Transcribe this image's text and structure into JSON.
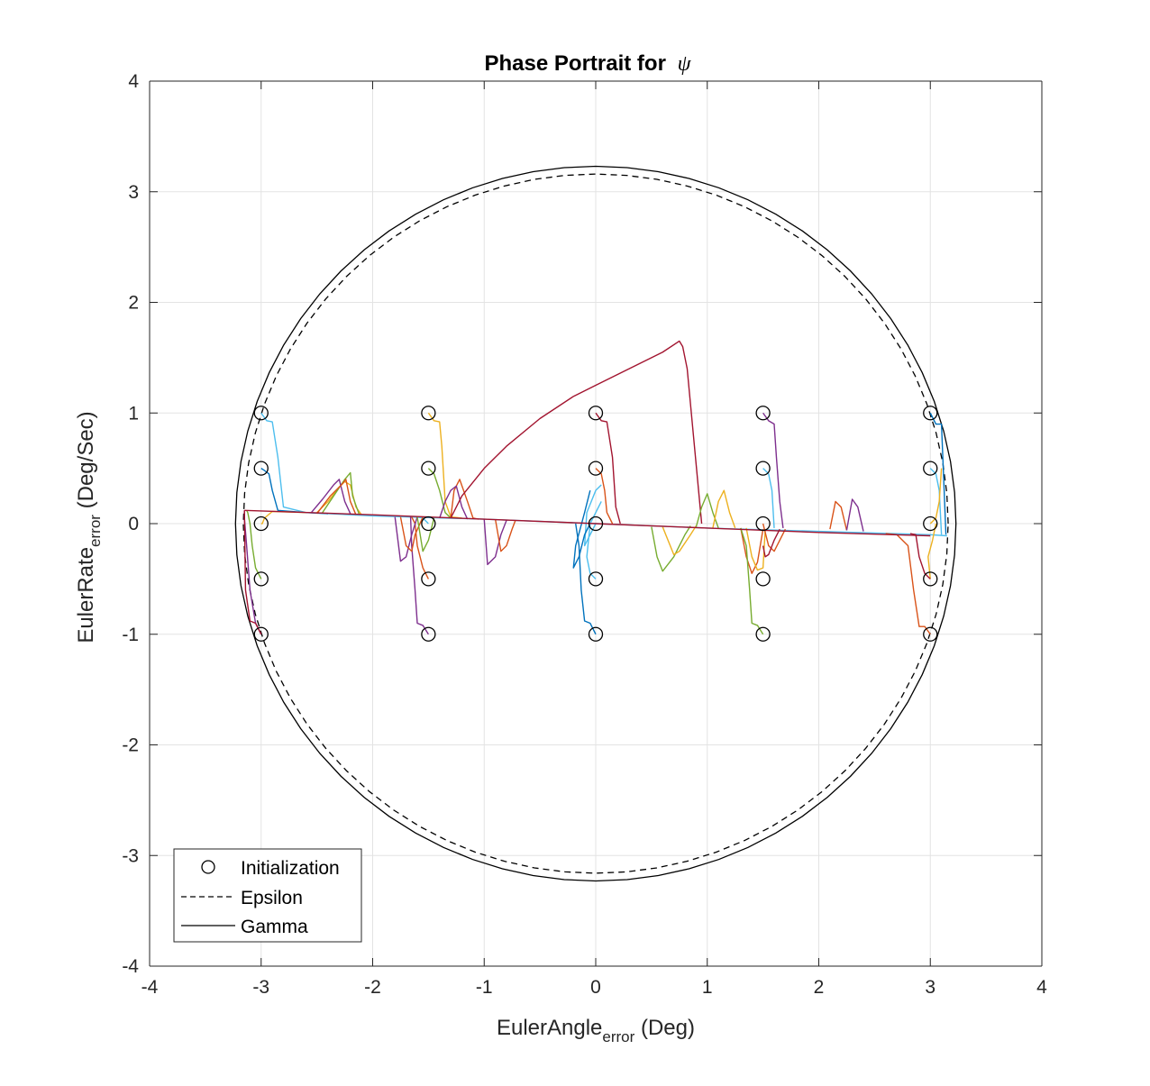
{
  "chart_data": {
    "type": "line",
    "title": "Phase Portrait for",
    "title_symbol": "ψ",
    "xlabel": {
      "main": "EulerAngle",
      "sub": "error",
      "unit": " (Deg)"
    },
    "ylabel": {
      "main": "EulerRate",
      "sub": "error",
      "unit": " (Deg/Sec)"
    },
    "xlim": [
      -4,
      4
    ],
    "ylim": [
      -4,
      4
    ],
    "xticks": [
      -4,
      -3,
      -2,
      -1,
      0,
      1,
      2,
      3,
      4
    ],
    "yticks": [
      -4,
      -3,
      -2,
      -1,
      0,
      1,
      2,
      3,
      4
    ],
    "xtick_labels": [
      "-4",
      "-3",
      "-2",
      "-1",
      "0",
      "1",
      "2",
      "3",
      "4"
    ],
    "ytick_labels": [
      "-4",
      "-3",
      "-2",
      "-1",
      "0",
      "1",
      "2",
      "3",
      "4"
    ],
    "grid": true,
    "legend": {
      "position": "bottom-left",
      "entries": [
        {
          "label": "Initialization",
          "style": "circle-marker"
        },
        {
          "label": "Epsilon",
          "style": "dashed"
        },
        {
          "label": "Gamma",
          "style": "solid"
        }
      ]
    },
    "boundaries": {
      "epsilon": {
        "label": "Epsilon",
        "radius": 3.16,
        "style": "dashed",
        "color": "#000000"
      },
      "gamma": {
        "label": "Gamma",
        "radius": 3.23,
        "style": "solid",
        "color": "#000000"
      }
    },
    "initialization": {
      "label": "Initialization",
      "x": [
        -3,
        -1.5,
        0,
        1.5,
        3
      ],
      "y": [
        -1,
        -0.5,
        0,
        0.5,
        1
      ]
    },
    "series_colors": [
      "#0072BD",
      "#D95319",
      "#EDB120",
      "#7E2F8E",
      "#77AC30",
      "#4DBEEE",
      "#A2142F"
    ],
    "series": [
      {
        "color": "#4DBEEE",
        "x": [
          -3,
          -2.95,
          -2.9,
          -2.85,
          -2.8,
          -2.6,
          -2.4,
          -2.0,
          -1.0,
          0.0,
          1.0,
          2.0,
          3.0,
          3.15
        ],
        "y": [
          1,
          0.93,
          0.92,
          0.6,
          0.15,
          0.1,
          0.09,
          0.07,
          0.04,
          0.0,
          -0.04,
          -0.07,
          -0.1,
          -0.11
        ]
      },
      {
        "color": "#0072BD",
        "x": [
          -3,
          -2.97,
          -2.93,
          -2.9,
          -2.85,
          -2.6,
          -2.4
        ],
        "y": [
          0.5,
          0.48,
          0.45,
          0.3,
          0.12,
          0.1,
          0.09
        ]
      },
      {
        "color": "#EDB120",
        "x": [
          -3,
          -2.99,
          -2.97,
          -2.9,
          -2.6
        ],
        "y": [
          0,
          0.0,
          0.05,
          0.11,
          0.1
        ]
      },
      {
        "color": "#77AC30",
        "x": [
          -3,
          -3.05,
          -3.08,
          -3.1,
          -3.12,
          -3.13
        ],
        "y": [
          -0.5,
          -0.4,
          -0.2,
          0.0,
          0.1,
          0.12
        ]
      },
      {
        "color": "#7E2F8E",
        "x": [
          -3,
          -3.05,
          -3.1,
          -3.13,
          -3.15,
          -3.15
        ],
        "y": [
          -1,
          -0.9,
          -0.6,
          -0.2,
          0.05,
          0.12
        ]
      },
      {
        "color": "#A2142F",
        "x": [
          -3.15,
          -3.14,
          -3.1,
          -3.05,
          -3.0
        ],
        "y": [
          0.12,
          -0.6,
          -0.88,
          -0.9,
          -1
        ]
      },
      {
        "color": "#EDB120",
        "x": [
          -2.5,
          -2.4,
          -2.3,
          -2.25,
          -2.2,
          -2.15,
          -2.1
        ],
        "y": [
          0.1,
          0.2,
          0.33,
          0.38,
          0.35,
          0.15,
          0.08
        ]
      },
      {
        "color": "#77AC30",
        "x": [
          -2.45,
          -2.35,
          -2.25,
          -2.2,
          -2.18,
          -2.12
        ],
        "y": [
          0.1,
          0.25,
          0.4,
          0.46,
          0.25,
          0.08
        ]
      },
      {
        "color": "#7E2F8E",
        "x": [
          -2.55,
          -2.45,
          -2.35,
          -2.3,
          -2.25,
          -2.2
        ],
        "y": [
          0.1,
          0.22,
          0.35,
          0.4,
          0.2,
          0.09
        ]
      },
      {
        "color": "#D95319",
        "x": [
          -2.5,
          -2.38,
          -2.28,
          -2.24,
          -2.2,
          -2.15
        ],
        "y": [
          0.09,
          0.25,
          0.35,
          0.4,
          0.2,
          0.08
        ]
      },
      {
        "color": "#EDB120",
        "x": [
          -1.5,
          -1.45,
          -1.4,
          -1.38,
          -1.35,
          -1.3,
          -1.2
        ],
        "y": [
          1,
          0.93,
          0.92,
          0.7,
          0.2,
          0.06,
          0.05
        ]
      },
      {
        "color": "#77AC30",
        "x": [
          -1.5,
          -1.45,
          -1.4,
          -1.35,
          -1.3
        ],
        "y": [
          0.5,
          0.45,
          0.3,
          0.1,
          0.05
        ]
      },
      {
        "color": "#4DBEEE",
        "x": [
          -1.5,
          -1.52,
          -1.55,
          -1.6
        ],
        "y": [
          0,
          0.02,
          0.05,
          0.06
        ]
      },
      {
        "color": "#D95319",
        "x": [
          -1.5,
          -1.55,
          -1.6,
          -1.62,
          -1.65
        ],
        "y": [
          -0.5,
          -0.4,
          -0.2,
          0.0,
          0.06
        ]
      },
      {
        "color": "#7E2F8E",
        "x": [
          -1.5,
          -1.55,
          -1.6,
          -1.62,
          -1.65,
          -1.66
        ],
        "y": [
          -1,
          -0.92,
          -0.9,
          -0.6,
          -0.2,
          0.06
        ]
      },
      {
        "color": "#7E2F8E",
        "x": [
          -1.8,
          -1.75,
          -1.7,
          -1.65,
          -1.6
        ],
        "y": [
          0.06,
          -0.34,
          -0.3,
          -0.1,
          0.06
        ]
      },
      {
        "color": "#D95319",
        "x": [
          -1.75,
          -1.7,
          -1.65,
          -1.62,
          -1.55
        ],
        "y": [
          0.06,
          -0.2,
          -0.25,
          -0.1,
          0.06
        ]
      },
      {
        "color": "#77AC30",
        "x": [
          -1.6,
          -1.55,
          -1.5,
          -1.45
        ],
        "y": [
          0.06,
          -0.25,
          -0.15,
          0.05
        ]
      },
      {
        "color": "#D95319",
        "x": [
          -1.3,
          -1.27,
          -1.22,
          -1.15,
          -1.1,
          -1.05
        ],
        "y": [
          0.05,
          0.3,
          0.4,
          0.2,
          0.05,
          0.04
        ]
      },
      {
        "color": "#7E2F8E",
        "x": [
          -1.4,
          -1.35,
          -1.3,
          -1.25,
          -1.2,
          -1.15
        ],
        "y": [
          0.05,
          0.2,
          0.3,
          0.34,
          0.15,
          0.04
        ]
      },
      {
        "color": "#7E2F8E",
        "x": [
          -1.0,
          -0.97,
          -0.9,
          -0.85,
          -0.8
        ],
        "y": [
          0.04,
          -0.37,
          -0.3,
          -0.1,
          0.03
        ]
      },
      {
        "color": "#D95319",
        "x": [
          -0.9,
          -0.85,
          -0.8,
          -0.75,
          -0.72
        ],
        "y": [
          0.04,
          -0.25,
          -0.2,
          -0.05,
          0.03
        ]
      },
      {
        "color": "#A2142F",
        "x": [
          -1.3,
          -1.2,
          -1.0,
          -0.8,
          -0.5,
          -0.2,
          0,
          0.2,
          0.4,
          0.6,
          0.75,
          0.78,
          0.82,
          0.95
        ],
        "y": [
          0.05,
          0.25,
          0.5,
          0.7,
          0.95,
          1.15,
          1.25,
          1.35,
          1.45,
          1.55,
          1.65,
          1.6,
          1.4,
          0.0
        ]
      },
      {
        "color": "#A2142F",
        "x": [
          0,
          0.05,
          0.1,
          0.15,
          0.18,
          0.22
        ],
        "y": [
          1,
          0.93,
          0.92,
          0.6,
          0.15,
          0.0
        ]
      },
      {
        "color": "#D95319",
        "x": [
          0,
          0.05,
          0.08,
          0.1,
          0.15
        ],
        "y": [
          0.5,
          0.45,
          0.3,
          0.1,
          0.0
        ]
      },
      {
        "color": "#4DBEEE",
        "x": [
          0,
          -0.05,
          -0.1,
          -0.08,
          0,
          0.05
        ],
        "y": [
          0,
          -0.1,
          -0.2,
          0.1,
          0.3,
          0.35
        ]
      },
      {
        "color": "#0072BD",
        "x": [
          -0.05,
          -0.1,
          -0.15,
          -0.2,
          -0.18,
          -0.1,
          -0.05
        ],
        "y": [
          0.0,
          -0.1,
          -0.3,
          -0.4,
          -0.2,
          0.1,
          0.3
        ]
      },
      {
        "color": "#4DBEEE",
        "x": [
          0,
          -0.05,
          -0.08,
          -0.05,
          0.05
        ],
        "y": [
          -0.5,
          -0.45,
          -0.3,
          0.0,
          0.2
        ]
      },
      {
        "color": "#0072BD",
        "x": [
          0,
          -0.05,
          -0.1,
          -0.13,
          -0.15,
          -0.18
        ],
        "y": [
          -1,
          -0.9,
          -0.88,
          -0.6,
          -0.2,
          0.0
        ]
      },
      {
        "color": "#77AC30",
        "x": [
          0.5,
          0.55,
          0.6,
          0.7,
          0.8,
          0.85
        ],
        "y": [
          -0.03,
          -0.3,
          -0.43,
          -0.3,
          -0.1,
          -0.02
        ]
      },
      {
        "color": "#EDB120",
        "x": [
          0.6,
          0.7,
          0.75,
          0.85,
          0.9
        ],
        "y": [
          -0.03,
          -0.28,
          -0.25,
          -0.1,
          -0.02
        ]
      },
      {
        "color": "#77AC30",
        "x": [
          0.9,
          0.95,
          1.0,
          1.05,
          1.1
        ],
        "y": [
          -0.03,
          0.15,
          0.27,
          0.1,
          -0.04
        ]
      },
      {
        "color": "#EDB120",
        "x": [
          1.05,
          1.1,
          1.15,
          1.2,
          1.25
        ],
        "y": [
          -0.04,
          0.2,
          0.3,
          0.1,
          -0.04
        ]
      },
      {
        "color": "#D95319",
        "x": [
          1.3,
          1.35,
          1.4,
          1.45,
          1.5
        ],
        "y": [
          -0.04,
          -0.3,
          -0.45,
          -0.35,
          -0.05
        ]
      },
      {
        "color": "#EDB120",
        "x": [
          1.35,
          1.4,
          1.45,
          1.5,
          1.52
        ],
        "y": [
          -0.04,
          -0.3,
          -0.42,
          -0.4,
          -0.05
        ]
      },
      {
        "color": "#7E2F8E",
        "x": [
          1.5,
          1.55,
          1.6,
          1.62,
          1.65,
          1.68
        ],
        "y": [
          1,
          0.93,
          0.9,
          0.6,
          0.2,
          -0.04
        ]
      },
      {
        "color": "#4DBEEE",
        "x": [
          1.5,
          1.55,
          1.58,
          1.6
        ],
        "y": [
          0.5,
          0.45,
          0.3,
          -0.04
        ]
      },
      {
        "color": "#D95319",
        "x": [
          1.5,
          1.55,
          1.6,
          1.65,
          1.7
        ],
        "y": [
          0,
          -0.2,
          -0.25,
          -0.15,
          -0.05
        ]
      },
      {
        "color": "#A2142F",
        "x": [
          1.5,
          1.52,
          1.55,
          1.6,
          1.65
        ],
        "y": [
          -0.2,
          -0.3,
          -0.28,
          -0.15,
          -0.05
        ]
      },
      {
        "color": "#77AC30",
        "x": [
          1.5,
          1.45,
          1.4,
          1.38,
          1.35,
          1.3
        ],
        "y": [
          -1,
          -0.92,
          -0.9,
          -0.6,
          -0.2,
          -0.04
        ]
      },
      {
        "color": "#D95319",
        "x": [
          2.1,
          2.15,
          2.2,
          2.25
        ],
        "y": [
          -0.05,
          0.2,
          0.15,
          -0.06
        ]
      },
      {
        "color": "#7E2F8E",
        "x": [
          2.25,
          2.3,
          2.35,
          2.4
        ],
        "y": [
          -0.06,
          0.22,
          0.15,
          -0.07
        ]
      },
      {
        "color": "#EDB120",
        "x": [
          3,
          2.98,
          3.02,
          3.05
        ],
        "y": [
          -0.5,
          -0.3,
          -0.15,
          0.0
        ]
      },
      {
        "color": "#0072BD",
        "x": [
          3,
          3.05,
          3.1,
          3.12,
          3.14
        ],
        "y": [
          1,
          0.9,
          0.9,
          0.4,
          -0.1
        ]
      },
      {
        "color": "#4DBEEE",
        "x": [
          3,
          3.05,
          3.08,
          3.1
        ],
        "y": [
          0.5,
          0.45,
          0.3,
          -0.1
        ]
      },
      {
        "color": "#EDB120",
        "x": [
          3,
          3.05,
          3.08,
          3.1
        ],
        "y": [
          0,
          0.05,
          0.2,
          0.5
        ]
      },
      {
        "color": "#A2142F",
        "x": [
          3,
          2.95,
          2.9,
          2.87,
          2.82
        ],
        "y": [
          -0.5,
          -0.45,
          -0.3,
          -0.1,
          -0.09
        ]
      },
      {
        "color": "#D95319",
        "x": [
          3,
          2.95,
          2.9,
          2.85,
          2.8,
          2.7,
          2.6
        ],
        "y": [
          -1,
          -0.93,
          -0.93,
          -0.6,
          -0.2,
          -0.1,
          -0.09
        ]
      },
      {
        "color": "#A2142F",
        "x": [
          -3.15,
          -2.0,
          -1.0,
          0.0,
          1.0,
          2.0,
          3.0
        ],
        "y": [
          0.12,
          0.08,
          0.04,
          0.0,
          -0.04,
          -0.08,
          -0.11
        ]
      }
    ]
  }
}
